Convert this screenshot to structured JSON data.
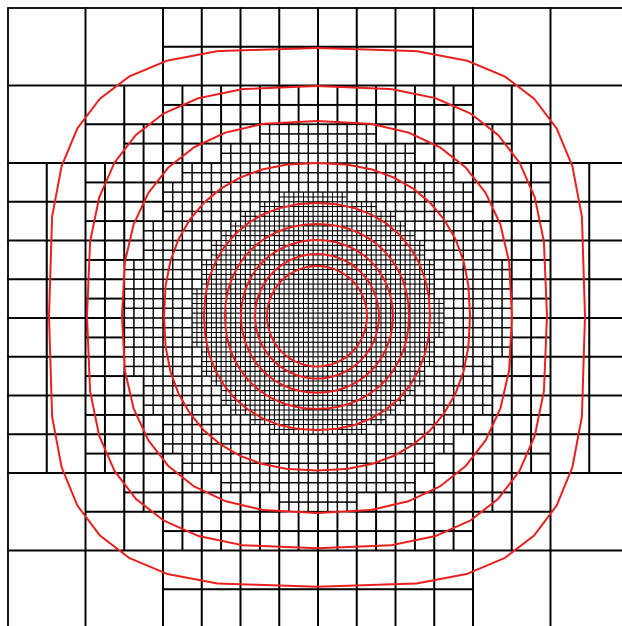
{
  "figure": {
    "description_free": true,
    "background_color": "#ffffff",
    "grid_color": "#000000",
    "contour_color": "#e8201e",
    "base_grid_divisions": 8,
    "refinement_levels": 4,
    "contour_count": 9
  }
}
